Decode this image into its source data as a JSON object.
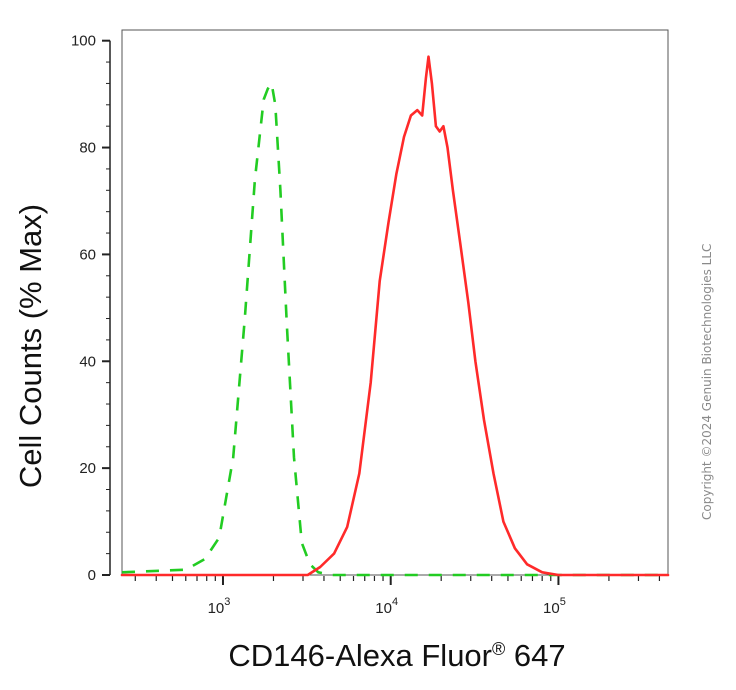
{
  "chart_data": {
    "type": "line",
    "title": "",
    "xlabel": "CD146-Alexa Fluor",
    "xlabel_sup": "®",
    "xlabel_tail": " 647",
    "ylabel": "Cell Counts (% Max)",
    "x_scale": "log",
    "xlim": [
      250,
      450000
    ],
    "ylim": [
      0,
      102
    ],
    "x_tick_labels": [
      {
        "base": "10",
        "exp": "3",
        "value": 1000
      },
      {
        "base": "10",
        "exp": "4",
        "value": 10000
      },
      {
        "base": "10",
        "exp": "5",
        "value": 100000
      }
    ],
    "y_ticks": [
      0,
      20,
      40,
      60,
      80,
      100
    ],
    "grid": false,
    "legend": "none",
    "series": [
      {
        "color": "#22cc22",
        "style": "dashed",
        "x": [
          250,
          600,
          780,
          950,
          1150,
          1350,
          1550,
          1750,
          1850,
          1950,
          2050,
          2200,
          2400,
          2650,
          2950,
          3300,
          3700,
          4500,
          10000,
          100000,
          450000
        ],
        "y": [
          0.5,
          1,
          3,
          7,
          22,
          48,
          74,
          89,
          91,
          92,
          88,
          72,
          47,
          22,
          6,
          2,
          0.5,
          0,
          0,
          0,
          0
        ]
      },
      {
        "color": "#ff2a2a",
        "style": "solid",
        "x": [
          250,
          2000,
          3200,
          3800,
          4600,
          5500,
          6500,
          7600,
          8600,
          9700,
          10800,
          12000,
          13200,
          14400,
          15400,
          16200,
          16800,
          17600,
          18600,
          19600,
          20600,
          21800,
          23500,
          26000,
          29000,
          32000,
          36000,
          41000,
          47000,
          55000,
          65000,
          80000,
          100000,
          150000,
          450000
        ],
        "y": [
          0,
          0,
          0,
          1.5,
          4,
          9,
          19,
          36,
          55,
          66,
          75,
          82,
          86,
          87,
          86,
          93,
          97,
          92,
          84,
          83,
          84,
          80,
          72,
          62,
          51,
          40,
          29,
          19,
          10,
          5,
          2,
          0.5,
          0,
          0,
          0
        ]
      }
    ]
  },
  "copyright": "Copyright ©2024 Genuin Biotechnologies LLC"
}
